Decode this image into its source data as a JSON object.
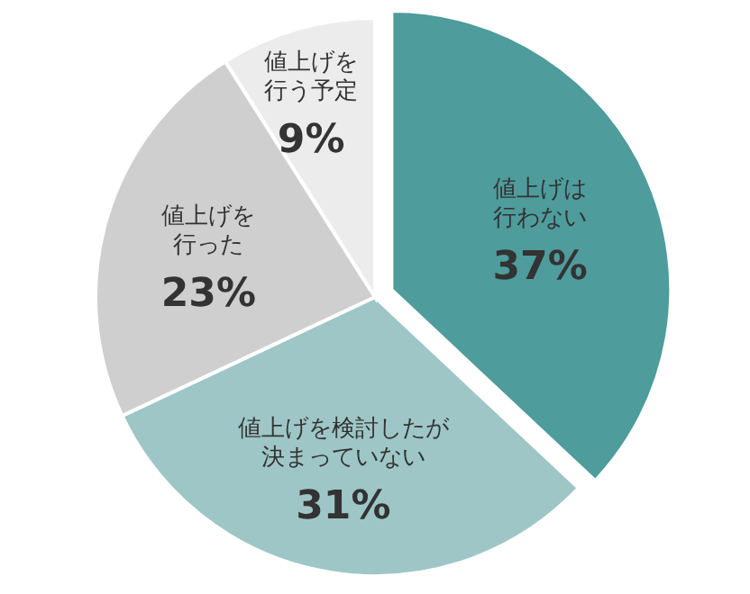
{
  "chart_data": {
    "type": "pie",
    "categories": [
      "値上げは行わない",
      "値上げを検討したが決まっていない",
      "値上げを行った",
      "値上げを行う予定"
    ],
    "values": [
      37,
      31,
      23,
      9
    ],
    "value_labels": [
      "37%",
      "31%",
      "23%",
      "9%"
    ],
    "colors": [
      "#4e9c9c",
      "#9ec6c6",
      "#cfcfcf",
      "#ececec"
    ]
  }
}
